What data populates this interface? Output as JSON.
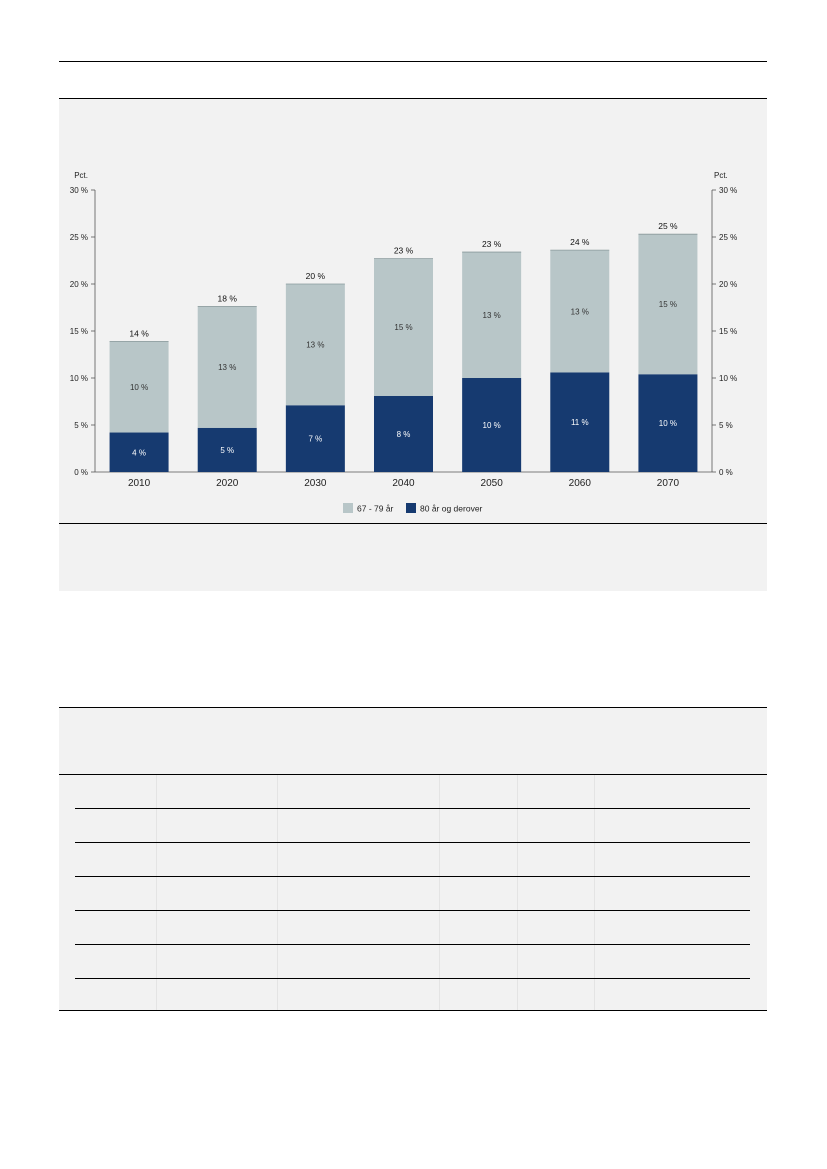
{
  "colors": {
    "seniors": "#b8c6c8",
    "elderly": "#163a70"
  },
  "chart_data": {
    "type": "bar",
    "stacked": true,
    "categories": [
      "2010",
      "2020",
      "2030",
      "2040",
      "2050",
      "2060",
      "2070"
    ],
    "series": [
      {
        "name": "80 år og derover",
        "values": [
          4.2,
          4.7,
          7.1,
          8.1,
          10.0,
          10.6,
          10.4
        ],
        "labels": [
          "4 %",
          "5 %",
          "7 %",
          "8 %",
          "10 %",
          "11 %",
          "10 %"
        ]
      },
      {
        "name": "67 - 79 år",
        "values": [
          9.7,
          12.9,
          12.9,
          14.6,
          13.4,
          13.0,
          14.9
        ],
        "labels": [
          "10 %",
          "13 %",
          "13 %",
          "15 %",
          "13 %",
          "13 %",
          "15 %"
        ]
      }
    ],
    "totals": [
      13.9,
      17.6,
      20.0,
      22.7,
      23.4,
      23.6,
      25.3
    ],
    "total_labels": [
      "14 %",
      "18 %",
      "20 %",
      "23 %",
      "23 %",
      "24 %",
      "25 %"
    ],
    "ylim": [
      0,
      30
    ],
    "yticks": [
      0,
      5,
      10,
      15,
      20,
      25,
      30
    ],
    "ytick_labels": [
      "0 %",
      "5 %",
      "10 %",
      "15 %",
      "20 %",
      "25 %",
      "30 %"
    ],
    "yunit_left": "Pct.",
    "yunit_right": "Pct.",
    "legend": {
      "position": "bottom-center",
      "entries": [
        "67 - 79 år",
        "80 år og derover"
      ]
    }
  }
}
